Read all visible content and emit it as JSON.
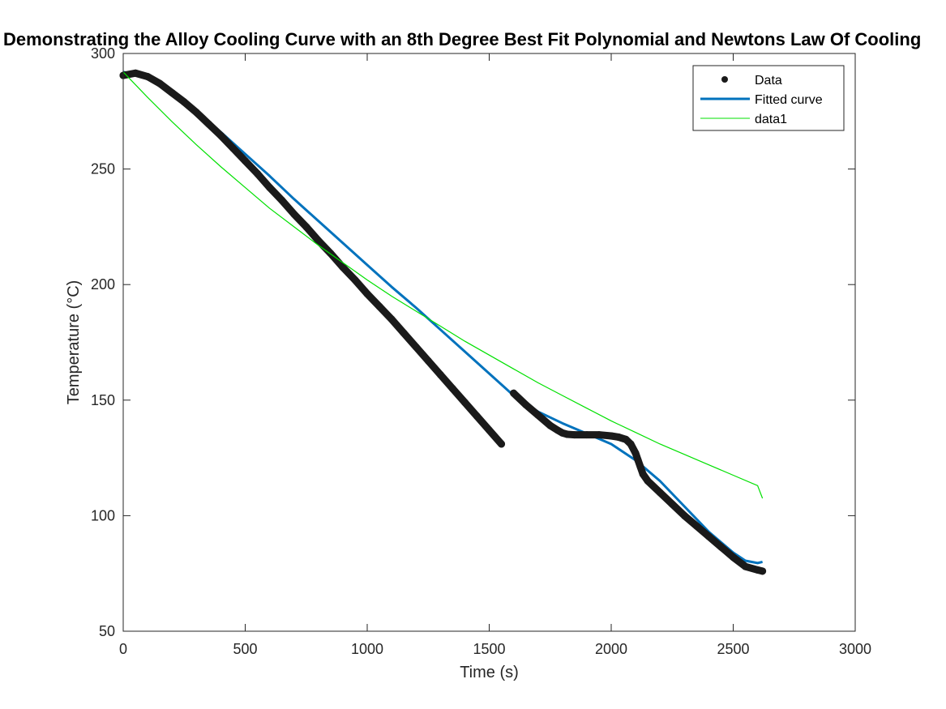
{
  "chart_data": {
    "type": "line",
    "title": "Demonstrating the Alloy Cooling Curve with an 8th Degree Best Fit Polynomial and Newtons Law Of Cooling",
    "xlabel": "Time (s)",
    "ylabel": "Temperature (°C)",
    "xlim": [
      0,
      3000
    ],
    "ylim": [
      50,
      300
    ],
    "xticks": [
      0,
      500,
      1000,
      1500,
      2000,
      2500,
      3000
    ],
    "yticks": [
      50,
      100,
      150,
      200,
      250,
      300
    ],
    "grid": false,
    "legend_position": "top-right",
    "colors": {
      "data": "#1a1a1a",
      "fit": "#0072BD",
      "newton": "#00E000"
    },
    "series": [
      {
        "name": "Data",
        "style": "markers",
        "x": [
          0,
          50,
          100,
          150,
          200,
          250,
          300,
          350,
          400,
          450,
          500,
          550,
          600,
          650,
          700,
          750,
          800,
          850,
          900,
          950,
          1000,
          1050,
          1100,
          1150,
          1200,
          1250,
          1300,
          1350,
          1400,
          1450,
          1500,
          1550,
          1600,
          1650,
          1700,
          1750,
          1780,
          1800,
          1820,
          1850,
          1900,
          1950,
          2000,
          2030,
          2060,
          2080,
          2100,
          2110,
          2120,
          2130,
          2150,
          2200,
          2250,
          2300,
          2350,
          2400,
          2450,
          2500,
          2550,
          2600,
          2620
        ],
        "y": [
          290.5,
          291.5,
          290,
          287,
          283,
          279,
          274.5,
          269.5,
          264.5,
          259,
          253.5,
          248,
          242,
          236.5,
          230.5,
          225,
          219,
          213.5,
          207.5,
          202,
          196,
          190.5,
          185,
          179,
          173,
          167,
          161,
          155,
          149,
          143,
          137,
          131,
          153,
          148,
          143.5,
          139,
          137,
          135.8,
          135.2,
          135,
          135,
          135,
          134.5,
          134,
          133,
          131,
          127,
          124,
          121,
          118,
          115,
          110,
          105,
          100,
          95.5,
          91,
          86.5,
          82,
          78,
          76.5,
          76
        ]
      },
      {
        "name": "Fitted curve",
        "style": "line",
        "x": [
          0,
          50,
          100,
          150,
          200,
          250,
          300,
          400,
          500,
          600,
          700,
          800,
          900,
          1000,
          1100,
          1200,
          1300,
          1400,
          1500,
          1600,
          1700,
          1800,
          1900,
          2000,
          2100,
          2200,
          2300,
          2400,
          2500,
          2550,
          2600,
          2620
        ],
        "y": [
          292,
          291,
          289,
          286,
          283,
          279,
          275,
          266,
          256.5,
          247,
          237,
          227.5,
          218,
          208.5,
          199,
          190,
          180.5,
          171,
          161.5,
          152,
          145,
          140,
          135.5,
          131,
          124,
          115,
          104,
          93,
          84,
          80.5,
          79.5,
          80
        ]
      },
      {
        "name": "data1",
        "style": "line",
        "x": [
          0,
          100,
          200,
          300,
          400,
          500,
          600,
          700,
          800,
          900,
          1000,
          1100,
          1200,
          1300,
          1400,
          1500,
          1600,
          1700,
          1800,
          1900,
          2000,
          2100,
          2200,
          2300,
          2400,
          2500,
          2600,
          2620
        ],
        "y": [
          292,
          281,
          270.5,
          260.5,
          251,
          242,
          233,
          225,
          217,
          209.5,
          202,
          195,
          188.5,
          182,
          175.5,
          169.5,
          163.5,
          157.5,
          152,
          146.5,
          141,
          136,
          131,
          126.5,
          122,
          117.5,
          113,
          107.5
        ]
      }
    ]
  }
}
